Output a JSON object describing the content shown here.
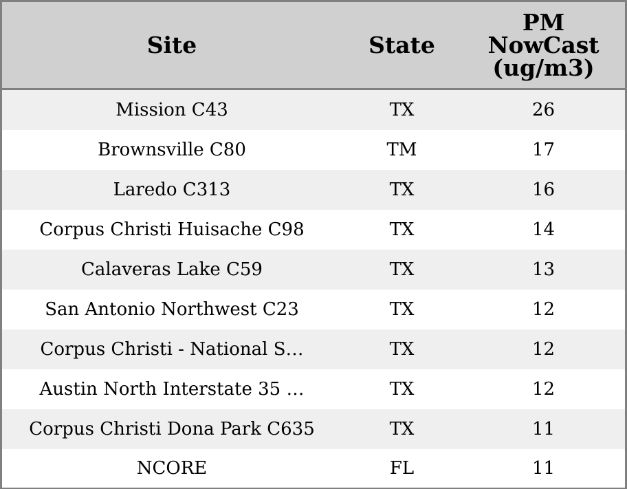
{
  "chart_data": {
    "type": "table",
    "columns": [
      "Site",
      "State",
      "PM NowCast (ug/m3)"
    ],
    "header_lines": {
      "site": [
        "Site"
      ],
      "state": [
        "State"
      ],
      "value": [
        "PM",
        "NowCast",
        "(ug/m3)"
      ]
    },
    "rows": [
      {
        "site": "Mission C43",
        "state": "TX",
        "value": 26
      },
      {
        "site": "Brownsville C80",
        "state": "TM",
        "value": 17
      },
      {
        "site": "Laredo C313",
        "state": "TX",
        "value": 16
      },
      {
        "site": "Corpus Christi Huisache C98",
        "state": "TX",
        "value": 14
      },
      {
        "site": "Calaveras Lake C59",
        "state": "TX",
        "value": 13
      },
      {
        "site": "San Antonio Northwest C23",
        "state": "TX",
        "value": 12
      },
      {
        "site": "Corpus Christi - National S…",
        "state": "TX",
        "value": 12
      },
      {
        "site": "Austin North Interstate 35 …",
        "state": "TX",
        "value": 12
      },
      {
        "site": "Corpus Christi Dona Park C635",
        "state": "TX",
        "value": 11
      },
      {
        "site": "NCORE",
        "state": "FL",
        "value": 11
      }
    ]
  },
  "colors": {
    "header_bg": "#d0d0d0",
    "row_alt_bg": "#efefef",
    "row_bg": "#ffffff",
    "border": "#808080"
  }
}
